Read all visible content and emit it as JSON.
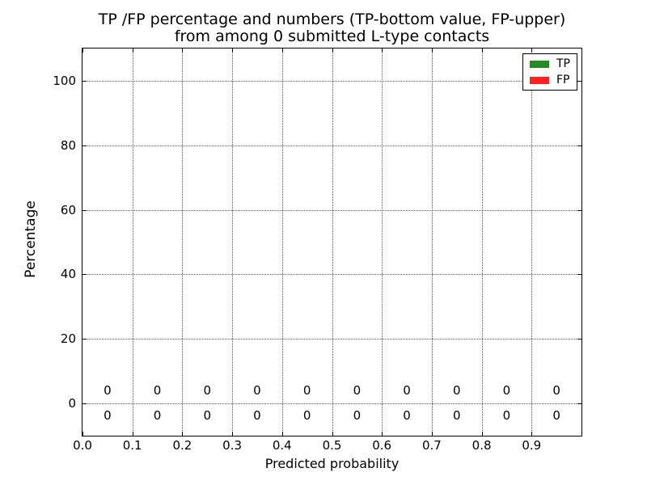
{
  "figure": {
    "background": "#ffffff"
  },
  "chart_data": {
    "type": "bar",
    "title_lines": [
      "TP /FP percentage and numbers (TP-bottom value, FP-upper)",
      "from among 0 submitted L-type contacts"
    ],
    "xlabel": "Predicted probability",
    "ylabel": "Percentage",
    "xlim": [
      0.0,
      1.0
    ],
    "ylim": [
      -10,
      110
    ],
    "x_ticks": [
      0.0,
      0.1,
      0.2,
      0.3,
      0.4,
      0.5,
      0.6,
      0.7,
      0.8,
      0.9
    ],
    "x_tick_labels": [
      "0.0",
      "0.1",
      "0.2",
      "0.3",
      "0.4",
      "0.5",
      "0.6",
      "0.7",
      "0.8",
      "0.9"
    ],
    "y_ticks": [
      0,
      20,
      40,
      60,
      80,
      100
    ],
    "y_tick_labels": [
      "0",
      "20",
      "40",
      "60",
      "80",
      "100"
    ],
    "grid": true,
    "grid_linestyle": "dotted",
    "bin_centers": [
      0.05,
      0.15,
      0.25,
      0.35,
      0.45,
      0.55,
      0.65,
      0.75,
      0.85,
      0.95
    ],
    "series": [
      {
        "name": "TP",
        "color": "#228B22",
        "values": [
          0,
          0,
          0,
          0,
          0,
          0,
          0,
          0,
          0,
          0
        ],
        "value_label_position": "below-zero-line"
      },
      {
        "name": "FP",
        "color": "#FF2222",
        "values": [
          0,
          0,
          0,
          0,
          0,
          0,
          0,
          0,
          0,
          0
        ],
        "value_label_position": "above-zero-line"
      }
    ],
    "legend": {
      "position": "upper right",
      "entries": [
        {
          "label": "TP",
          "color": "#228B22"
        },
        {
          "label": "FP",
          "color": "#FF2222"
        }
      ]
    }
  }
}
